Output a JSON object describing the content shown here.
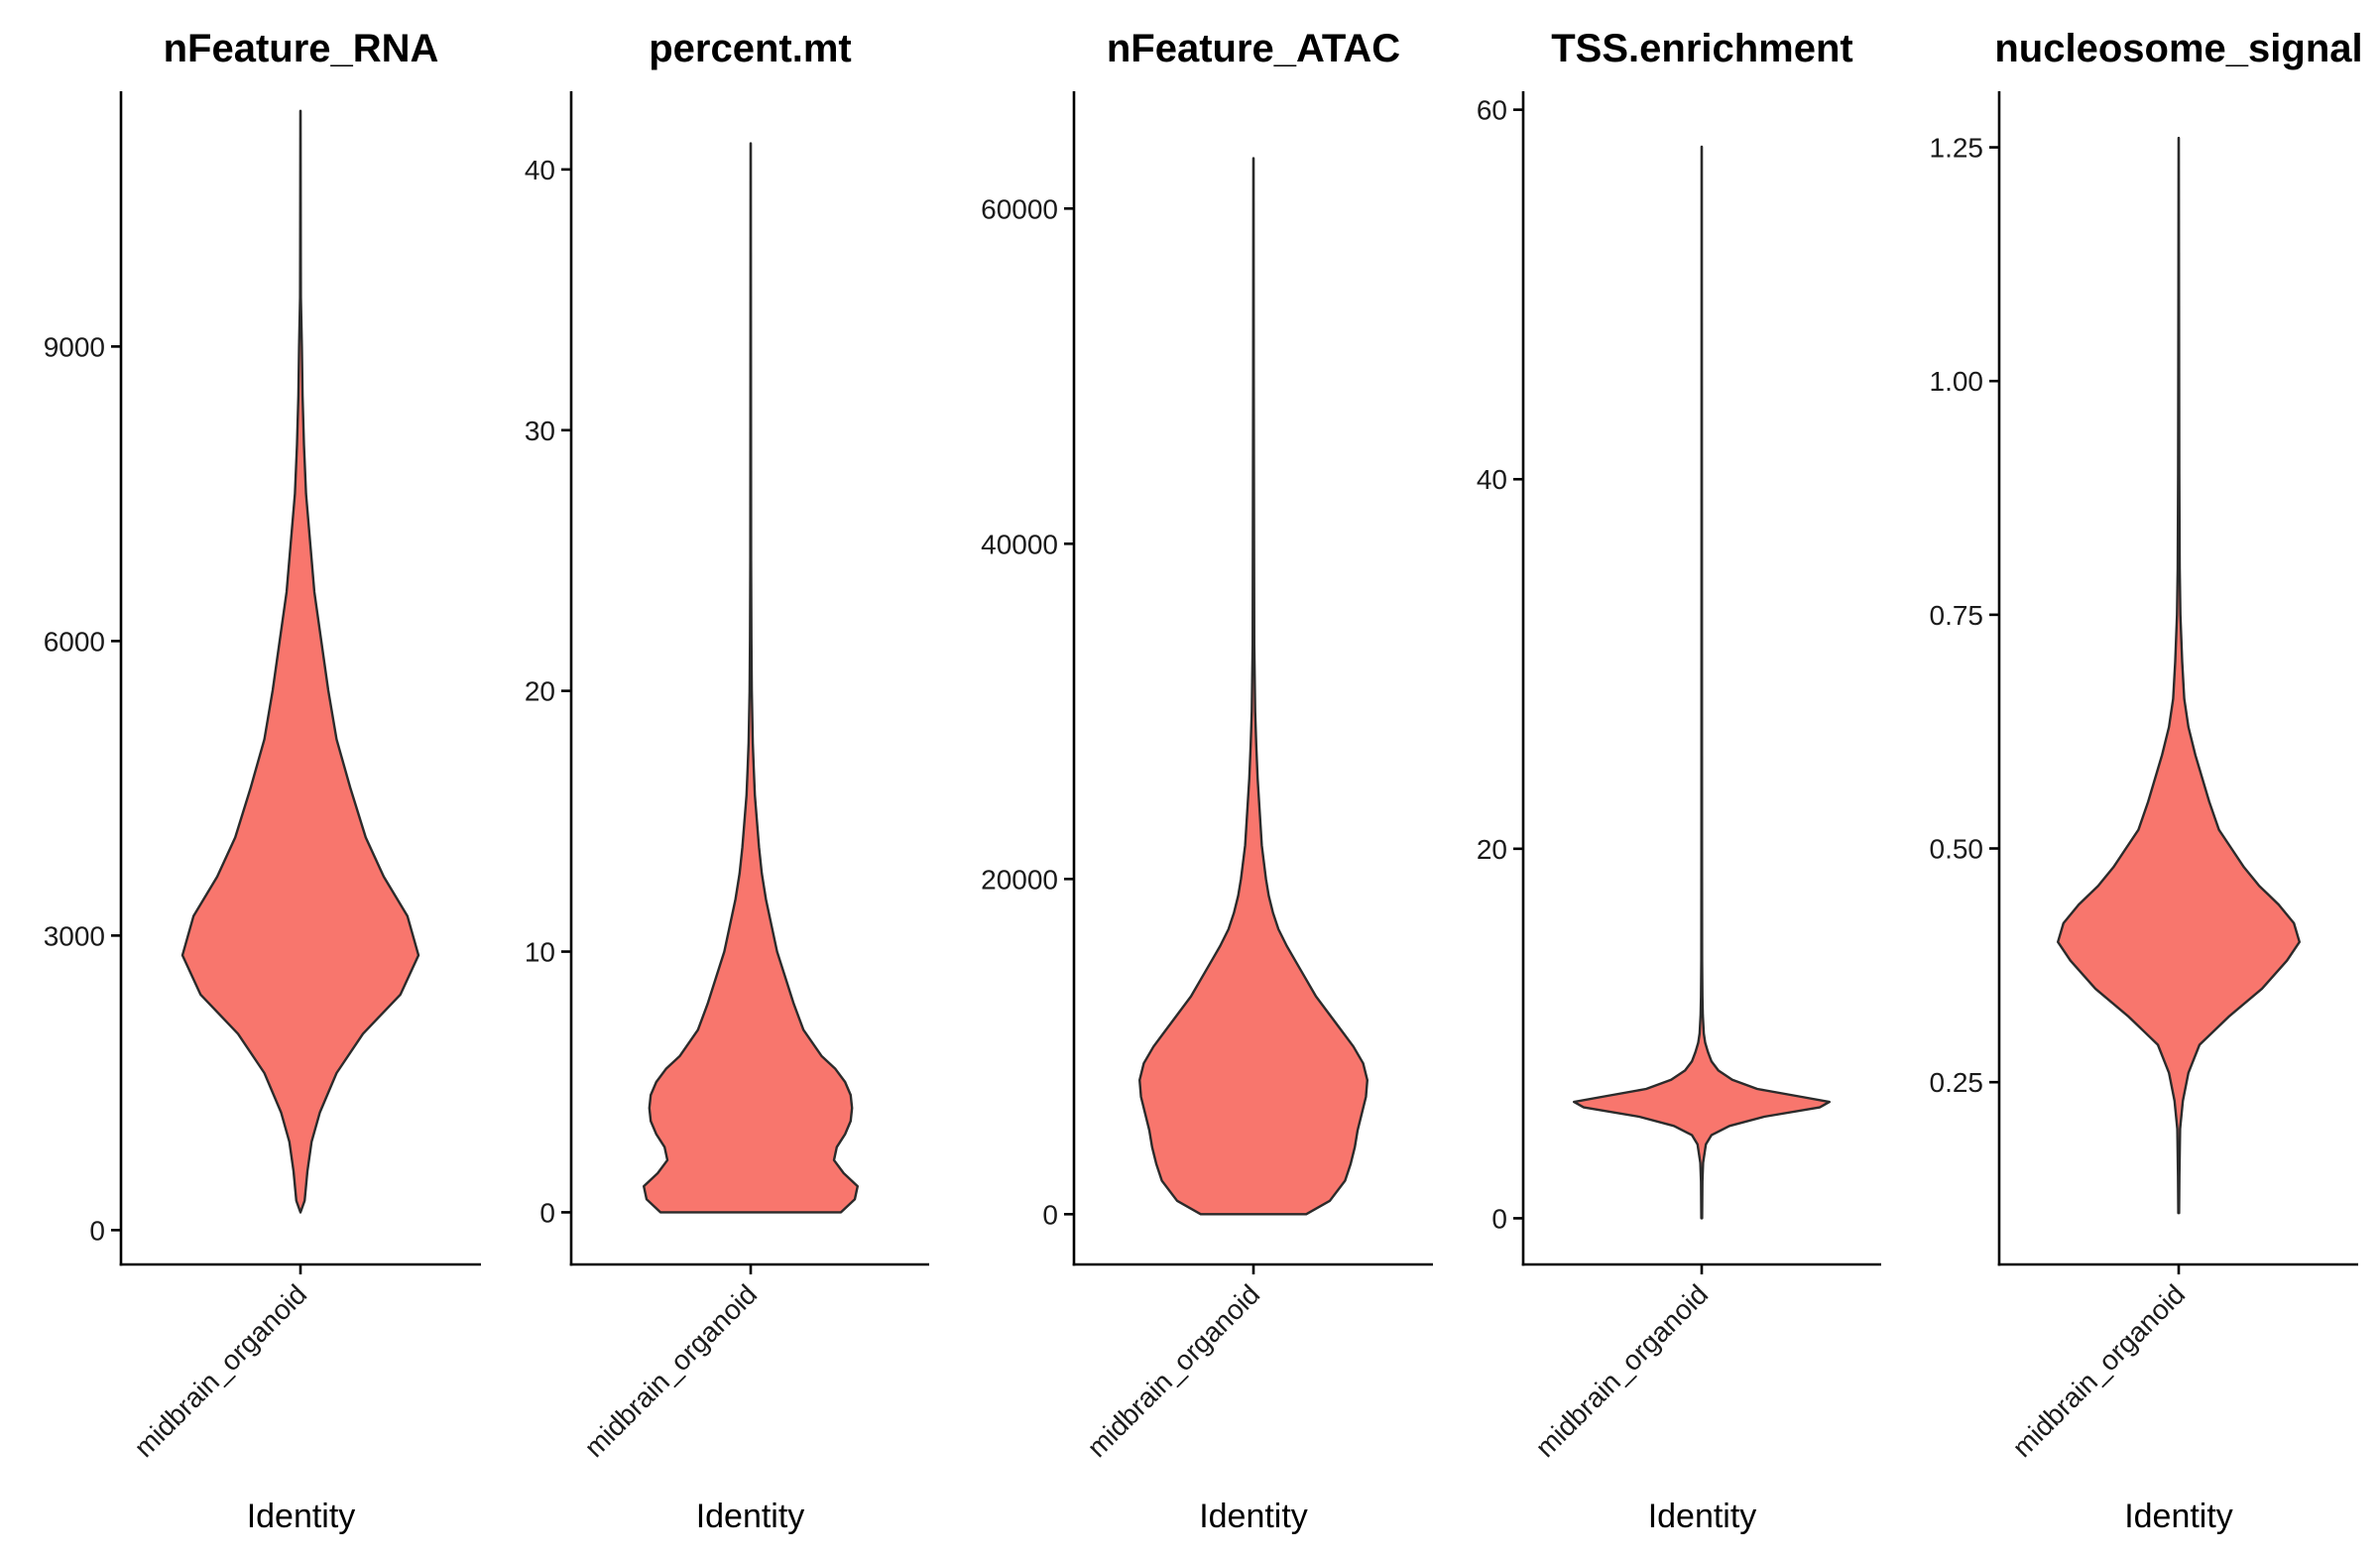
{
  "chart_data": [
    {
      "type": "violin",
      "title": "nFeature_RNA",
      "xlabel": "Identity",
      "category": "midbrain_organoid",
      "ylim": [
        -350,
        11600
      ],
      "yticks": [
        0,
        3000,
        6000,
        9000
      ],
      "ytick_labels": [
        "0",
        "3000",
        "6000",
        "9000"
      ],
      "fill": "#F8766D",
      "density": [
        [
          180,
          0
        ],
        [
          300,
          0.03
        ],
        [
          600,
          0.05
        ],
        [
          900,
          0.08
        ],
        [
          1200,
          0.14
        ],
        [
          1600,
          0.26
        ],
        [
          2000,
          0.45
        ],
        [
          2400,
          0.72
        ],
        [
          2800,
          0.85
        ],
        [
          3200,
          0.77
        ],
        [
          3600,
          0.6
        ],
        [
          4000,
          0.47
        ],
        [
          4500,
          0.36
        ],
        [
          5000,
          0.26
        ],
        [
          5500,
          0.2
        ],
        [
          6000,
          0.15
        ],
        [
          6500,
          0.1
        ],
        [
          7000,
          0.07
        ],
        [
          7500,
          0.04
        ],
        [
          8000,
          0.025
        ],
        [
          8500,
          0.015
        ],
        [
          9000,
          0.01
        ],
        [
          9500,
          0.003
        ],
        [
          10000,
          0.002
        ],
        [
          11400,
          0.001
        ]
      ]
    },
    {
      "type": "violin",
      "title": "percent.mt",
      "xlabel": "Identity",
      "category": "midbrain_organoid",
      "ylim": [
        -2,
        43
      ],
      "yticks": [
        0,
        10,
        20,
        30,
        40
      ],
      "ytick_labels": [
        "0",
        "10",
        "20",
        "30",
        "40"
      ],
      "fill": "#F8766D",
      "density": [
        [
          0,
          0.65
        ],
        [
          0.5,
          0.75
        ],
        [
          1,
          0.77
        ],
        [
          1.5,
          0.67
        ],
        [
          2,
          0.6
        ],
        [
          2.5,
          0.62
        ],
        [
          3,
          0.68
        ],
        [
          3.5,
          0.72
        ],
        [
          4,
          0.73
        ],
        [
          4.5,
          0.72
        ],
        [
          5,
          0.68
        ],
        [
          5.5,
          0.61
        ],
        [
          6,
          0.51
        ],
        [
          7,
          0.38
        ],
        [
          8,
          0.31
        ],
        [
          9,
          0.25
        ],
        [
          10,
          0.19
        ],
        [
          11,
          0.15
        ],
        [
          12,
          0.11
        ],
        [
          13,
          0.08
        ],
        [
          14,
          0.06
        ],
        [
          15,
          0.045
        ],
        [
          16,
          0.03
        ],
        [
          17,
          0.022
        ],
        [
          18,
          0.015
        ],
        [
          20,
          0.008
        ],
        [
          22,
          0.005
        ],
        [
          25,
          0.003
        ],
        [
          30,
          0.002
        ],
        [
          41,
          0.001
        ]
      ]
    },
    {
      "type": "violin",
      "title": "nFeature_ATAC",
      "xlabel": "Identity",
      "category": "midbrain_organoid",
      "ylim": [
        -3000,
        67000
      ],
      "yticks": [
        0,
        20000,
        40000,
        60000
      ],
      "ytick_labels": [
        "0",
        "20000",
        "40000",
        "60000"
      ],
      "fill": "#F8766D",
      "density": [
        [
          0,
          0.38
        ],
        [
          800,
          0.55
        ],
        [
          2000,
          0.66
        ],
        [
          3000,
          0.7
        ],
        [
          4000,
          0.73
        ],
        [
          5000,
          0.75
        ],
        [
          6000,
          0.78
        ],
        [
          7000,
          0.81
        ],
        [
          8000,
          0.82
        ],
        [
          9000,
          0.79
        ],
        [
          10000,
          0.72
        ],
        [
          11000,
          0.63
        ],
        [
          12000,
          0.54
        ],
        [
          13000,
          0.45
        ],
        [
          14000,
          0.38
        ],
        [
          15000,
          0.31
        ],
        [
          16000,
          0.24
        ],
        [
          17000,
          0.18
        ],
        [
          18000,
          0.14
        ],
        [
          19000,
          0.11
        ],
        [
          20000,
          0.09
        ],
        [
          22000,
          0.06
        ],
        [
          24000,
          0.045
        ],
        [
          26000,
          0.03
        ],
        [
          28000,
          0.02
        ],
        [
          30000,
          0.012
        ],
        [
          34000,
          0.006
        ],
        [
          40000,
          0.004
        ],
        [
          50000,
          0.002
        ],
        [
          63000,
          0.001
        ]
      ]
    },
    {
      "type": "violin",
      "title": "TSS.enrichment",
      "xlabel": "Identity",
      "category": "midbrain_organoid",
      "ylim": [
        -2.5,
        61
      ],
      "yticks": [
        0,
        20,
        40,
        60
      ],
      "ytick_labels": [
        "0",
        "20",
        "40",
        "60"
      ],
      "fill": "#F8766D",
      "density": [
        [
          0,
          0.003
        ],
        [
          2,
          0.005
        ],
        [
          3,
          0.01
        ],
        [
          4,
          0.03
        ],
        [
          4.5,
          0.07
        ],
        [
          5,
          0.2
        ],
        [
          5.5,
          0.45
        ],
        [
          6,
          0.85
        ],
        [
          6.3,
          0.92
        ],
        [
          6.6,
          0.7
        ],
        [
          7,
          0.4
        ],
        [
          7.5,
          0.22
        ],
        [
          8,
          0.12
        ],
        [
          8.5,
          0.07
        ],
        [
          9,
          0.045
        ],
        [
          9.5,
          0.025
        ],
        [
          10,
          0.015
        ],
        [
          11,
          0.008
        ],
        [
          12,
          0.005
        ],
        [
          14,
          0.003
        ],
        [
          20,
          0.002
        ],
        [
          58,
          0.001
        ]
      ]
    },
    {
      "type": "violin",
      "title": "nucleosome_signal",
      "xlabel": "Identity",
      "category": "midbrain_organoid",
      "ylim": [
        0.055,
        1.31
      ],
      "yticks": [
        0.25,
        0.5,
        0.75,
        1.0,
        1.25
      ],
      "ytick_labels": [
        "0.25",
        "0.50",
        "0.75",
        "1.00",
        "1.25"
      ],
      "fill": "#F8766D",
      "density": [
        [
          0.11,
          0.003
        ],
        [
          0.15,
          0.005
        ],
        [
          0.2,
          0.01
        ],
        [
          0.23,
          0.03
        ],
        [
          0.26,
          0.07
        ],
        [
          0.29,
          0.15
        ],
        [
          0.32,
          0.36
        ],
        [
          0.35,
          0.6
        ],
        [
          0.38,
          0.78
        ],
        [
          0.4,
          0.87
        ],
        [
          0.42,
          0.83
        ],
        [
          0.44,
          0.72
        ],
        [
          0.46,
          0.58
        ],
        [
          0.48,
          0.47
        ],
        [
          0.5,
          0.38
        ],
        [
          0.52,
          0.29
        ],
        [
          0.55,
          0.22
        ],
        [
          0.58,
          0.16
        ],
        [
          0.6,
          0.12
        ],
        [
          0.63,
          0.07
        ],
        [
          0.66,
          0.04
        ],
        [
          0.7,
          0.025
        ],
        [
          0.75,
          0.012
        ],
        [
          0.8,
          0.007
        ],
        [
          0.9,
          0.004
        ],
        [
          1.1,
          0.002
        ],
        [
          1.26,
          0.001
        ]
      ]
    }
  ]
}
